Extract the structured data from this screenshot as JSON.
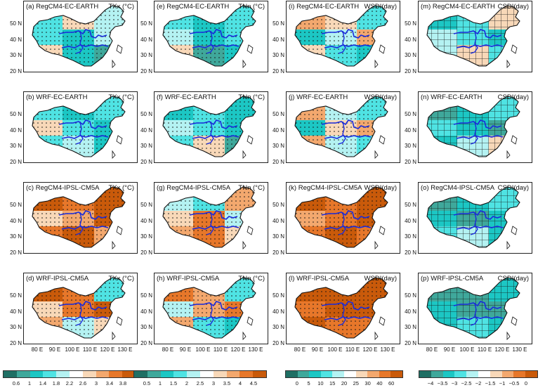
{
  "panels": [
    {
      "label": "(a) RegCM4-EC-EARTH",
      "var": "TXx (°C)",
      "pattern": "dots",
      "scheme": 0,
      "pal": [
        3,
        5,
        4,
        3,
        2,
        4,
        5,
        2,
        1
      ]
    },
    {
      "label": "(e) RegCM4-EC-EARTH",
      "var": "TNn (°C)",
      "pattern": "dots",
      "scheme": 1,
      "pal": [
        3,
        2,
        3,
        4,
        2,
        3,
        5,
        1,
        2
      ]
    },
    {
      "label": "(i) RegCM4-EC-EARTH",
      "var": "WSDI(day)",
      "pattern": "dots",
      "scheme": 2,
      "pal": [
        6,
        5,
        3,
        2,
        4,
        6,
        5,
        3,
        2
      ]
    },
    {
      "label": "(m) RegCM4-EC-EARTH",
      "var": "CSDI(day)",
      "pattern": "hatch",
      "scheme": 3,
      "pal": [
        2,
        3,
        5,
        4,
        3,
        2,
        4,
        5,
        3
      ]
    },
    {
      "label": "(b) WRF-EC-EARTH",
      "var": "TXx (°C)",
      "pattern": "dots",
      "scheme": 0,
      "pal": [
        3,
        2,
        3,
        5,
        3,
        2,
        3,
        4,
        2
      ]
    },
    {
      "label": "(f) WRF-EC-EARTH",
      "var": "TNn (°C)",
      "pattern": "dots",
      "scheme": 1,
      "pal": [
        2,
        3,
        2,
        4,
        3,
        2,
        3,
        5,
        1
      ]
    },
    {
      "label": "(j) WRF-EC-EARTH",
      "var": "WSDI(day)",
      "pattern": "dots",
      "scheme": 2,
      "pal": [
        6,
        4,
        3,
        2,
        5,
        6,
        6,
        4,
        3
      ]
    },
    {
      "label": "(n) WRF-EC-EARTH",
      "var": "CSDI(day)",
      "pattern": "hatch",
      "scheme": 3,
      "pal": [
        1,
        2,
        3,
        3,
        2,
        1,
        2,
        4,
        5
      ]
    },
    {
      "label": "(c) RegCM4-IPSL-CM5A",
      "var": "TXx (°C)",
      "pattern": "dots",
      "scheme": 0,
      "pal": [
        8,
        7,
        8,
        5,
        6,
        8,
        7,
        8,
        6
      ]
    },
    {
      "label": "(g) RegCM4-IPSL-CM5A",
      "var": "TNn (°C)",
      "pattern": "dots",
      "scheme": 1,
      "pal": [
        4,
        3,
        6,
        5,
        7,
        4,
        6,
        7,
        5
      ]
    },
    {
      "label": "(k) RegCM4-IPSL-CM5A",
      "var": "WSDI(day)",
      "pattern": "dots",
      "scheme": 2,
      "pal": [
        8,
        7,
        8,
        6,
        7,
        8,
        7,
        8,
        7
      ]
    },
    {
      "label": "(o) RegCM4-IPSL-CM5A",
      "var": "CSDI(day)",
      "pattern": "hatch",
      "scheme": 3,
      "pal": [
        1,
        2,
        3,
        2,
        1,
        2,
        3,
        4,
        2
      ]
    },
    {
      "label": "(d) WRF-IPSL-CM5A",
      "var": "TXx (°C)",
      "pattern": "dots",
      "scheme": 0,
      "pal": [
        8,
        7,
        3,
        5,
        7,
        8,
        6,
        4,
        5
      ]
    },
    {
      "label": "(h) WRF-IPSL-CM5A",
      "var": "TNn (°C)",
      "pattern": "dots",
      "scheme": 1,
      "pal": [
        7,
        6,
        3,
        4,
        6,
        7,
        6,
        3,
        2
      ]
    },
    {
      "label": "(l) WRF-IPSL-CM5A",
      "var": "WSDI(day)",
      "pattern": "dots",
      "scheme": 2,
      "pal": [
        8,
        8,
        8,
        7,
        8,
        8,
        8,
        7,
        7
      ]
    },
    {
      "label": "(p) WRF-IPSL-CM5A",
      "var": "CSDI(day)",
      "pattern": "hatch",
      "scheme": 3,
      "pal": [
        1,
        1,
        2,
        2,
        1,
        1,
        2,
        3,
        2
      ]
    }
  ],
  "lat_ticks": [
    "50 N",
    "40 N",
    "30 N",
    "20 N"
  ],
  "lon_ticks": [
    "80 E",
    "90 E",
    "100 E",
    "110 E",
    "120 E",
    "130 E"
  ],
  "colorbars": [
    {
      "ticks": [
        "0.6",
        "1",
        "1.4",
        "1.8",
        "2.2",
        "2.6",
        "3",
        "3.4",
        "3.8"
      ],
      "colors": [
        "#1f6f64",
        "#3fa89b",
        "#1cc7c4",
        "#4fe3e3",
        "#b4f2f2",
        "#ffffff",
        "#f8d8b8",
        "#f3a86e",
        "#e7772a",
        "#c95a0a"
      ]
    },
    {
      "ticks": [
        "0.5",
        "1",
        "1.5",
        "2",
        "2.5",
        "3",
        "3.5",
        "4",
        "4.5"
      ],
      "colors": [
        "#1f6f64",
        "#3fa89b",
        "#1cc7c4",
        "#4fe3e3",
        "#b4f2f2",
        "#ffffff",
        "#f8d8b8",
        "#f3a86e",
        "#e7772a",
        "#c95a0a"
      ]
    },
    {
      "ticks": [
        "0",
        "5",
        "10",
        "15",
        "20",
        "25",
        "30",
        "40",
        "60"
      ],
      "colors": [
        "#1f6f64",
        "#3fa89b",
        "#1cc7c4",
        "#4fe3e3",
        "#b4f2f2",
        "#ffffff",
        "#f8d8b8",
        "#f3a86e",
        "#e7772a",
        "#c95a0a"
      ]
    },
    {
      "ticks": [
        "−4",
        "−3.5",
        "−3",
        "−2.5",
        "−2",
        "−1.5",
        "−1",
        "−0.5",
        "0"
      ],
      "colors": [
        "#1f6f64",
        "#3fa89b",
        "#1cc7c4",
        "#4fe3e3",
        "#b4f2f2",
        "#ffffff",
        "#f8d8b8",
        "#f3a86e",
        "#e7772a",
        "#c95a0a"
      ]
    }
  ],
  "palette": [
    "#1f6f64",
    "#3fa89b",
    "#1cc7c4",
    "#4fe3e3",
    "#b4f2f2",
    "#f8d8b8",
    "#f3a86e",
    "#e7772a",
    "#c95a0a"
  ],
  "river_color": "#1a2bdc"
}
